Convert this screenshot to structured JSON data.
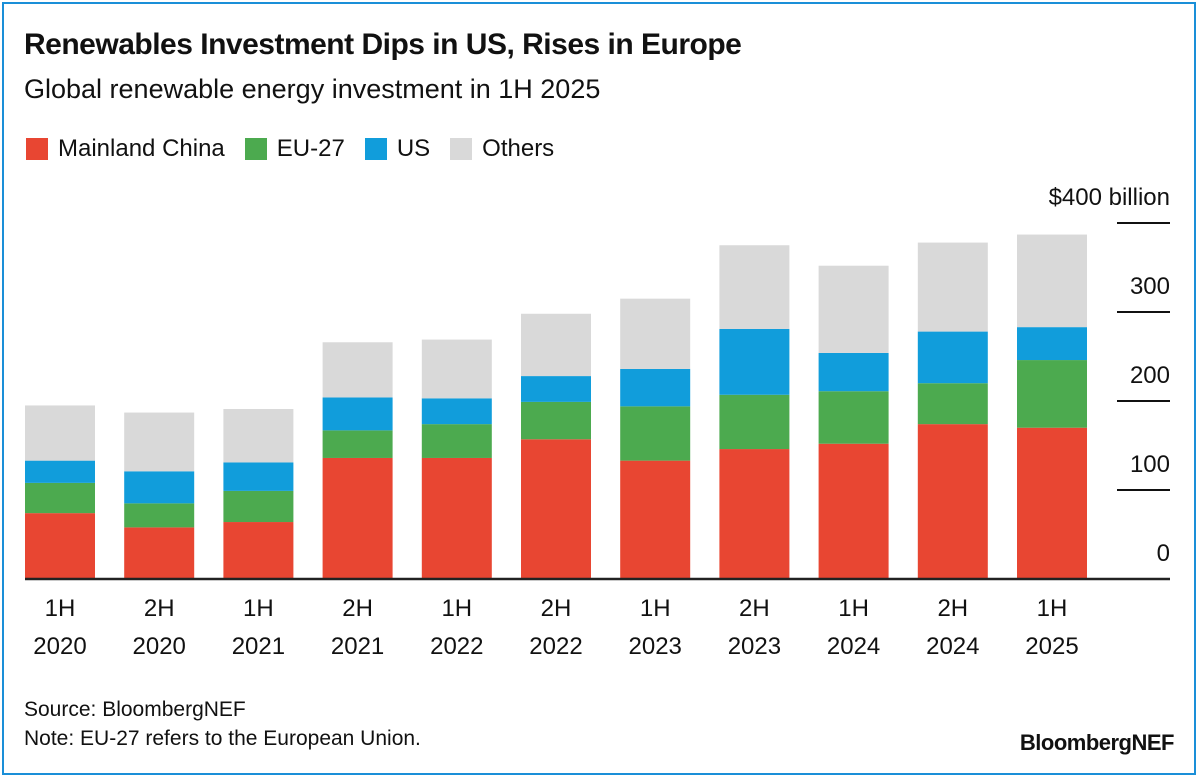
{
  "chart_data": {
    "type": "bar",
    "stacked": true,
    "title": "Renewables Investment Dips in US, Rises in Europe",
    "subtitle": "Global renewable energy investment in 1H 2025",
    "categories": [
      [
        "1H",
        "2020"
      ],
      [
        "2H",
        "2020"
      ],
      [
        "1H",
        "2021"
      ],
      [
        "2H",
        "2021"
      ],
      [
        "1H",
        "2022"
      ],
      [
        "2H",
        "2022"
      ],
      [
        "1H",
        "2023"
      ],
      [
        "2H",
        "2023"
      ],
      [
        "1H",
        "2024"
      ],
      [
        "2H",
        "2024"
      ],
      [
        "1H",
        "2025"
      ]
    ],
    "series": [
      {
        "name": "Mainland China",
        "color": "#e84632",
        "values": [
          74,
          58,
          64,
          136,
          136,
          157,
          133,
          146,
          152,
          174,
          170
        ]
      },
      {
        "name": "EU-27",
        "color": "#4caa4f",
        "values": [
          34,
          27,
          35,
          31,
          38,
          42,
          61,
          61,
          59,
          46,
          76
        ]
      },
      {
        "name": "US",
        "color": "#119ddb",
        "values": [
          25,
          36,
          32,
          37,
          29,
          29,
          42,
          74,
          43,
          58,
          37
        ]
      },
      {
        "name": "Others",
        "color": "#d9d9d9",
        "values": [
          62,
          66,
          60,
          62,
          66,
          70,
          79,
          94,
          98,
          100,
          104
        ]
      }
    ],
    "yticks": [
      {
        "value": 0,
        "label": "0"
      },
      {
        "value": 100,
        "label": "100"
      },
      {
        "value": 200,
        "label": "200"
      },
      {
        "value": 300,
        "label": "300"
      },
      {
        "value": 400,
        "label": "$400 billion"
      }
    ],
    "ylim": [
      0,
      400
    ],
    "y_axis_position": "right",
    "grid": false,
    "legend": "top-left"
  },
  "footer": {
    "source": "Source: BloombergNEF",
    "note": "Note: EU-27 refers to the European Union.",
    "logo": "BloombergNEF"
  }
}
